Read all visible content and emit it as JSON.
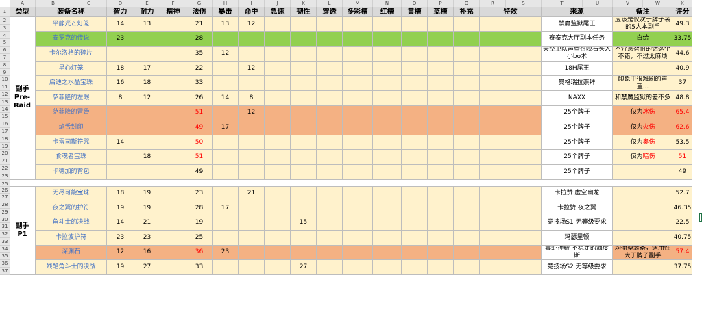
{
  "columns": [
    "A",
    "B",
    "C",
    "D",
    "E",
    "F",
    "G",
    "H",
    "I",
    "J",
    "K",
    "L",
    "M",
    "N",
    "O",
    "P",
    "Q",
    "R",
    "S",
    "T",
    "U",
    "V",
    "W",
    "X"
  ],
  "row_numbers": [
    "1",
    "2",
    "3",
    "4",
    "5",
    "6",
    "7",
    "8",
    "9",
    "10",
    "11",
    "12",
    "13",
    "14",
    "15",
    "16",
    "17",
    "18",
    "19",
    "20",
    "21",
    "22",
    "23",
    "24",
    "25",
    "26",
    "27",
    "28",
    "29",
    "30",
    "31",
    "32",
    "33",
    "34",
    "35",
    "36",
    "37"
  ],
  "headers": {
    "type": "类型",
    "name": "装备名称",
    "int": "智力",
    "sta": "耐力",
    "spi": "精神",
    "sp": "法伤",
    "crit": "暴击",
    "hit": "命中",
    "haste": "急速",
    "res": "韧性",
    "pen": "穿透",
    "multi": "多彩槽",
    "red": "红槽",
    "yellow": "黄槽",
    "blue": "蓝槽",
    "extra": "补充",
    "special": "特效",
    "source": "来源",
    "note": "备注",
    "score": "评分"
  },
  "type_labels": {
    "preraid_1": "副手",
    "preraid_2": "Pre-",
    "preraid_3": "Raid",
    "p1": "副手 P1"
  },
  "items": [
    {
      "name": "平静光芒灯笼",
      "int": "14",
      "sta": "13",
      "sp": "21",
      "crit": "13",
      "hit": "12",
      "source": "禁魔监狱尾王",
      "note": "应该是仅次于牌子装的5人本副手",
      "score": "49.3"
    },
    {
      "name": "泰罗克的传说",
      "int": "23",
      "sp": "28",
      "source": "赛泰克大厅副本任务",
      "note": "白给",
      "score": "33.75"
    },
    {
      "name": "卡尔洛格的碎片",
      "sp": "35",
      "crit": "12",
      "source": "天空卫队声望召唤石头人小bo术",
      "note": "不介意智耐的话这个不错，不过太麻烦",
      "score": "44.6"
    },
    {
      "name": "星心灯笼",
      "int": "18",
      "sta": "17",
      "sp": "22",
      "hit": "12",
      "source": "18H尾王",
      "score": "40.9"
    },
    {
      "name": "启迪之水晶宝珠",
      "int": "16",
      "sta": "18",
      "sp": "33",
      "source": "奥格瑞拉崇拜",
      "note": "印象中很难刷的声望...",
      "score": "37"
    },
    {
      "name": "萨菲隆的左眼",
      "int": "8",
      "sta": "12",
      "sp": "26",
      "crit": "14",
      "hit": "8",
      "source": "NAXX",
      "note": "和禁魔监狱的差不多",
      "score": "48.8"
    },
    {
      "name": "萨菲隆的冒骨",
      "sp": "51",
      "hit": "12",
      "source": "25个牌子",
      "note_pre": "仅为",
      "note_hl": "冰伤",
      "score": "65.4"
    },
    {
      "name": "焰舌封印",
      "sp": "49",
      "crit": "17",
      "source": "25个牌子",
      "note_pre": "仅为",
      "note_hl": "火伤",
      "score": "62.6"
    },
    {
      "name": "卡雷司斯符咒",
      "int": "14",
      "sp": "50",
      "source": "25个牌子",
      "note_pre": "仅为",
      "note_hl": "奥伤",
      "score": "53.5"
    },
    {
      "name": "食魂者宝珠",
      "sta": "18",
      "sp": "51",
      "source": "25个牌子",
      "note_pre": "仅为",
      "note_hl": "暗伤",
      "score": "51"
    },
    {
      "name": "卡德加的背包",
      "sp": "49",
      "source": "25个牌子",
      "score": "49"
    }
  ],
  "items_p1": [
    {
      "name": "无尽可能宝珠",
      "int": "18",
      "sta": "19",
      "sp": "23",
      "hit": "21",
      "source": "卡拉赞 虚空幽龙",
      "score": "52.7"
    },
    {
      "name": "夜之翼的护符",
      "int": "19",
      "sta": "19",
      "sp": "28",
      "crit": "17",
      "source": "卡拉赞 夜之翼",
      "score": "46.35"
    },
    {
      "name": "角斗士的决战",
      "int": "14",
      "sta": "21",
      "sp": "19",
      "res": "15",
      "source": "竞技场S1 无等级要求",
      "score": "22.5"
    },
    {
      "name": "卡拉波护符",
      "int": "23",
      "sta": "23",
      "sp": "25",
      "source": "玛瑟里顿",
      "score": "40.75"
    },
    {
      "name": "深渊石",
      "int": "12",
      "sta": "16",
      "sp": "36",
      "crit": "23",
      "source": "毒蛇神殿 不稳定的海度斯",
      "note": "均衡型装备，适用性大于牌子副手",
      "score": "57.4"
    },
    {
      "name": "残酷角斗士的决战",
      "int": "19",
      "sta": "27",
      "sp": "33",
      "res": "27",
      "source": "竞技场S2 无等级要求",
      "score": "37.75"
    }
  ],
  "colors": {
    "header_gray": "#d9d9d9",
    "cream": "#fff2cc",
    "green": "#92d050",
    "orange": "#f4b183",
    "name_blue": "#4472c4",
    "highlight_red": "#ff0000"
  }
}
